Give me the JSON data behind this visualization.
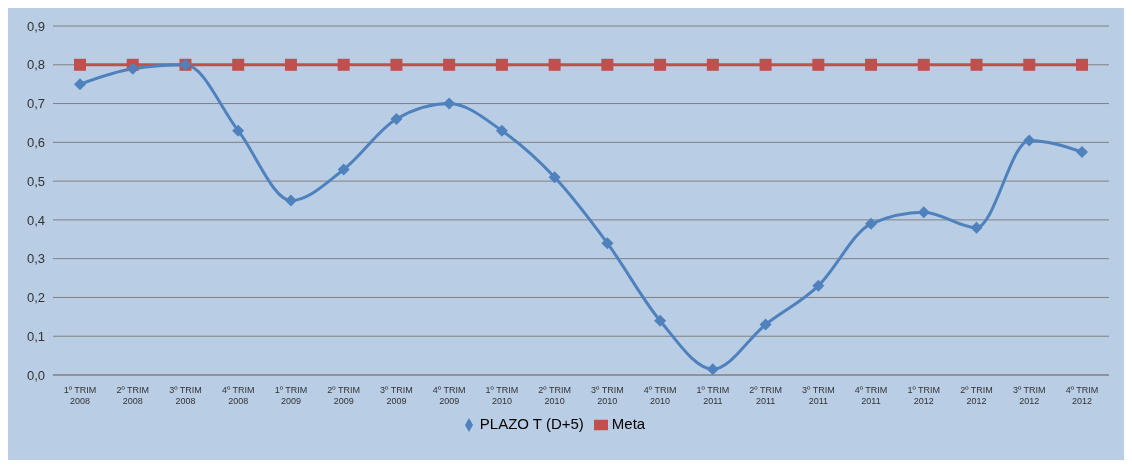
{
  "chart_data": {
    "type": "line",
    "categories": [
      "1º TRIM 2008",
      "2º TRIM 2008",
      "3º TRIM 2008",
      "4º TRIM 2008",
      "1º TRIM 2009",
      "2º TRIM 2009",
      "3º TRIM 2009",
      "4º TRIM 2009",
      "1º TRIM 2010",
      "2º TRIM 2010",
      "3º TRIM 2010",
      "4º TRIM 2010",
      "1º TRIM 2011",
      "2º TRIM 2011",
      "3º TRIM 2011",
      "4º TRIM 2011",
      "1º TRIM 2012",
      "2º TRIM 2012",
      "3º TRIM 2012",
      "4º TRIM 2012"
    ],
    "series": [
      {
        "name": "PLAZO T (D+5)",
        "color": "#4f81bd",
        "marker": "diamond",
        "values": [
          0.75,
          0.79,
          0.8,
          0.63,
          0.45,
          0.53,
          0.66,
          0.7,
          0.63,
          0.51,
          0.34,
          0.14,
          0.015,
          0.13,
          0.23,
          0.39,
          0.42,
          0.38,
          0.605,
          0.575
        ]
      },
      {
        "name": "Meta",
        "color": "#c0504d",
        "marker": "square",
        "values": [
          0.8,
          0.8,
          0.8,
          0.8,
          0.8,
          0.8,
          0.8,
          0.8,
          0.8,
          0.8,
          0.8,
          0.8,
          0.8,
          0.8,
          0.8,
          0.8,
          0.8,
          0.8,
          0.8,
          0.8
        ]
      }
    ],
    "ylim": [
      0,
      0.9
    ],
    "yticks": [
      {
        "value": 0,
        "label": "0,0"
      },
      {
        "value": 0.1,
        "label": "0,1"
      },
      {
        "value": 0.2,
        "label": "0,2"
      },
      {
        "value": 0.3,
        "label": "0,3"
      },
      {
        "value": 0.4,
        "label": "0,4"
      },
      {
        "value": 0.5,
        "label": "0,5"
      },
      {
        "value": 0.6,
        "label": "0,6"
      },
      {
        "value": 0.7,
        "label": "0,7"
      },
      {
        "value": 0.8,
        "label": "0,8"
      },
      {
        "value": 0.9,
        "label": "0,9"
      }
    ],
    "grid": "y",
    "legend": "bottom",
    "line_style": "solid"
  }
}
